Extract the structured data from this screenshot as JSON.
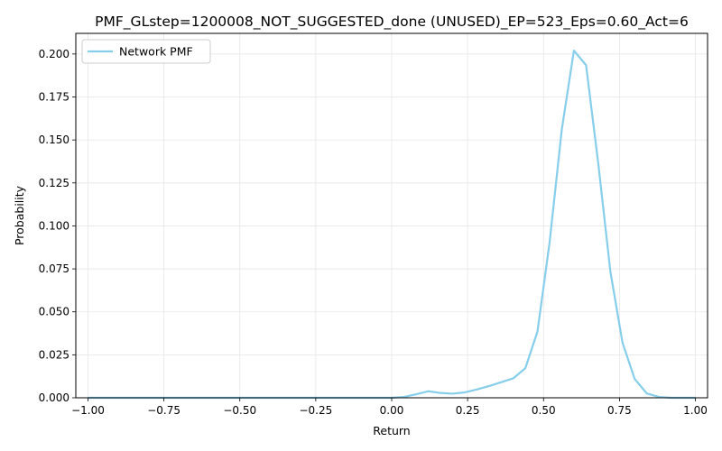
{
  "chart_data": {
    "type": "line",
    "title": "PMF_GLstep=1200008_NOT_SUGGESTED_done (UNUSED)_EP=523_Eps=0.60_Act=6",
    "xlabel": "Return",
    "ylabel": "Probability",
    "xlim": [
      -1.04,
      1.04
    ],
    "ylim": [
      0.0,
      0.212
    ],
    "xticks": [
      -1.0,
      -0.75,
      -0.5,
      -0.25,
      0.0,
      0.25,
      0.5,
      0.75,
      1.0
    ],
    "xtick_labels": [
      "−1.00",
      "−0.75",
      "−0.50",
      "−0.25",
      "0.00",
      "0.25",
      "0.50",
      "0.75",
      "1.00"
    ],
    "yticks": [
      0.0,
      0.025,
      0.05,
      0.075,
      0.1,
      0.125,
      0.15,
      0.175,
      0.2
    ],
    "ytick_labels": [
      "0.000",
      "0.025",
      "0.050",
      "0.075",
      "0.100",
      "0.125",
      "0.150",
      "0.175",
      "0.200"
    ],
    "grid": true,
    "legend_position": "top-left",
    "series": [
      {
        "name": "Network PMF",
        "color": "#87CEEB",
        "x": [
          -1.0,
          -0.96,
          -0.92,
          -0.88,
          -0.84,
          -0.8,
          -0.76,
          -0.72,
          -0.68,
          -0.64,
          -0.6,
          -0.56,
          -0.52,
          -0.48,
          -0.44,
          -0.4,
          -0.36,
          -0.32,
          -0.28,
          -0.24,
          -0.2,
          -0.16,
          -0.12,
          -0.08,
          -0.04,
          0.0,
          0.04,
          0.08,
          0.12,
          0.16,
          0.2,
          0.24,
          0.28,
          0.32,
          0.36,
          0.4,
          0.44,
          0.48,
          0.52,
          0.56,
          0.6,
          0.64,
          0.68,
          0.72,
          0.76,
          0.8,
          0.84,
          0.88,
          0.92,
          0.96,
          1.0
        ],
        "y": [
          0.0,
          0.0,
          0.0,
          0.0,
          0.0,
          0.0,
          0.0,
          0.0,
          0.0,
          0.0,
          0.0,
          0.0,
          0.0,
          0.0,
          0.0,
          0.0,
          0.0,
          0.0,
          0.0,
          0.0,
          0.0,
          0.0,
          0.0,
          0.0,
          0.0,
          0.0,
          0.0005,
          0.002,
          0.0038,
          0.0028,
          0.0024,
          0.0031,
          0.0048,
          0.0068,
          0.009,
          0.0113,
          0.0172,
          0.0385,
          0.0905,
          0.156,
          0.202,
          0.1935,
          0.1365,
          0.0735,
          0.032,
          0.011,
          0.0025,
          0.0005,
          0.0,
          0.0,
          0.0
        ]
      }
    ]
  }
}
